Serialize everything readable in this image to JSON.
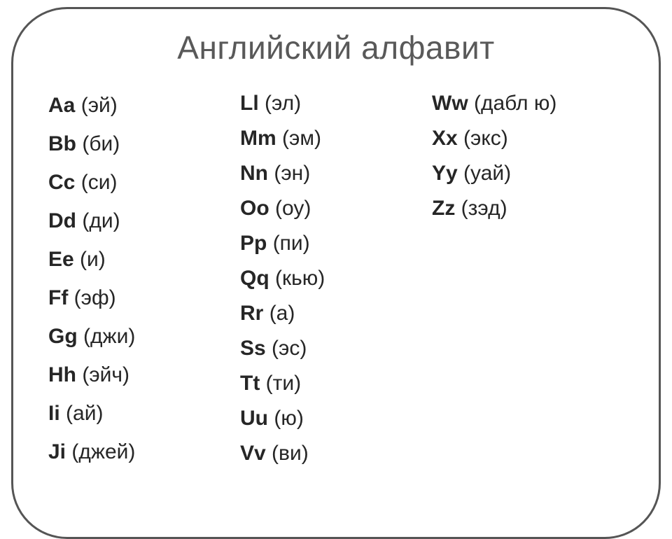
{
  "title": "Английский алфавит",
  "title_color": "#595959",
  "border_color": "#555555",
  "text_color": "#262626",
  "background_color": "#ffffff",
  "font_family": "Arial",
  "title_fontsize": 46,
  "row_fontsize": 30,
  "columns": [
    {
      "line_height": 55,
      "items": [
        {
          "letters": "Aa",
          "pron": "(эй)"
        },
        {
          "letters": "Bb",
          "pron": "(би)"
        },
        {
          "letters": "Cc",
          "pron": "(си)"
        },
        {
          "letters": "Dd",
          "pron": "(ди)"
        },
        {
          "letters": "Ee",
          "pron": "(и)"
        },
        {
          "letters": "Ff",
          "pron": "(эф)"
        },
        {
          "letters": "Gg",
          "pron": "(джи)"
        },
        {
          "letters": "Hh",
          "pron": "(эйч)"
        },
        {
          "letters": "Ii",
          "pron": "(ай)"
        },
        {
          "letters": "Ji",
          "pron": "(джей)"
        }
      ]
    },
    {
      "line_height": 50,
      "items": [
        {
          "letters": "Ll",
          "pron": "(эл)"
        },
        {
          "letters": "Mm",
          "pron": "(эм)"
        },
        {
          "letters": "Nn",
          "pron": "(эн)"
        },
        {
          "letters": "Oo",
          "pron": "(оу)"
        },
        {
          "letters": "Pp",
          "pron": "(пи)"
        },
        {
          "letters": "Qq",
          "pron": "(кью)"
        },
        {
          "letters": "Rr",
          "pron": "(а)"
        },
        {
          "letters": "Ss",
          "pron": "(эс)"
        },
        {
          "letters": "Tt",
          "pron": "(ти)"
        },
        {
          "letters": "Uu",
          "pron": "(ю)"
        },
        {
          "letters": "Vv",
          "pron": "(ви)"
        }
      ]
    },
    {
      "line_height": 50,
      "items": [
        {
          "letters": "Ww",
          "pron": "(дабл ю)"
        },
        {
          "letters": "Xx",
          "pron": "(экс)"
        },
        {
          "letters": "Yy",
          "pron": "(уай)"
        },
        {
          "letters": "Zz",
          "pron": "(зэд)"
        }
      ]
    }
  ]
}
